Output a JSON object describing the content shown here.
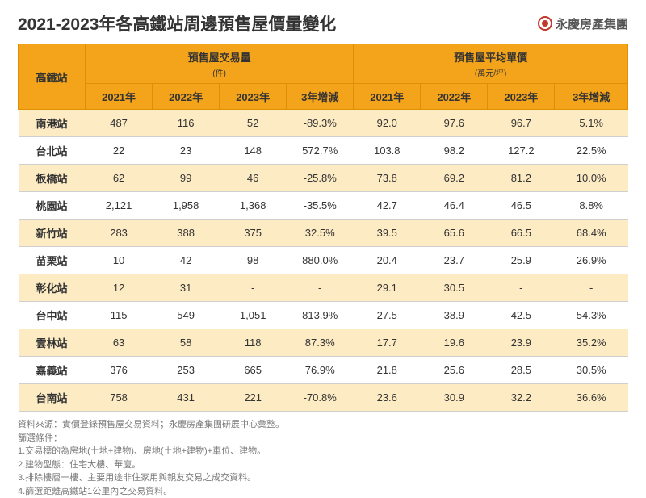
{
  "title": "2021-2023年各高鐵站周邊預售屋價量變化",
  "brand": "永慶房產集團",
  "table": {
    "station_header": "高鐵站",
    "group_volume": {
      "label": "預售屋交易量",
      "unit": "(件)"
    },
    "group_price": {
      "label": "預售屋平均單價",
      "unit": "(萬元/坪)"
    },
    "year_2021": "2021年",
    "year_2022": "2022年",
    "year_2023": "2023年",
    "change_3yr": "3年增減",
    "rows": [
      {
        "station": "南港站",
        "v2021": "487",
        "v2022": "116",
        "v2023": "52",
        "vchg": "-89.3%",
        "p2021": "92.0",
        "p2022": "97.6",
        "p2023": "96.7",
        "pchg": "5.1%"
      },
      {
        "station": "台北站",
        "v2021": "22",
        "v2022": "23",
        "v2023": "148",
        "vchg": "572.7%",
        "p2021": "103.8",
        "p2022": "98.2",
        "p2023": "127.2",
        "pchg": "22.5%"
      },
      {
        "station": "板橋站",
        "v2021": "62",
        "v2022": "99",
        "v2023": "46",
        "vchg": "-25.8%",
        "p2021": "73.8",
        "p2022": "69.2",
        "p2023": "81.2",
        "pchg": "10.0%"
      },
      {
        "station": "桃園站",
        "v2021": "2,121",
        "v2022": "1,958",
        "v2023": "1,368",
        "vchg": "-35.5%",
        "p2021": "42.7",
        "p2022": "46.4",
        "p2023": "46.5",
        "pchg": "8.8%"
      },
      {
        "station": "新竹站",
        "v2021": "283",
        "v2022": "388",
        "v2023": "375",
        "vchg": "32.5%",
        "p2021": "39.5",
        "p2022": "65.6",
        "p2023": "66.5",
        "pchg": "68.4%"
      },
      {
        "station": "苗栗站",
        "v2021": "10",
        "v2022": "42",
        "v2023": "98",
        "vchg": "880.0%",
        "p2021": "20.4",
        "p2022": "23.7",
        "p2023": "25.9",
        "pchg": "26.9%"
      },
      {
        "station": "彰化站",
        "v2021": "12",
        "v2022": "31",
        "v2023": "-",
        "vchg": "-",
        "p2021": "29.1",
        "p2022": "30.5",
        "p2023": "-",
        "pchg": "-"
      },
      {
        "station": "台中站",
        "v2021": "115",
        "v2022": "549",
        "v2023": "1,051",
        "vchg": "813.9%",
        "p2021": "27.5",
        "p2022": "38.9",
        "p2023": "42.5",
        "pchg": "54.3%"
      },
      {
        "station": "雲林站",
        "v2021": "63",
        "v2022": "58",
        "v2023": "118",
        "vchg": "87.3%",
        "p2021": "17.7",
        "p2022": "19.6",
        "p2023": "23.9",
        "pchg": "35.2%"
      },
      {
        "station": "嘉義站",
        "v2021": "376",
        "v2022": "253",
        "v2023": "665",
        "vchg": "76.9%",
        "p2021": "21.8",
        "p2022": "25.6",
        "p2023": "28.5",
        "pchg": "30.5%"
      },
      {
        "station": "台南站",
        "v2021": "758",
        "v2022": "431",
        "v2023": "221",
        "vchg": "-70.8%",
        "p2021": "23.6",
        "p2022": "30.9",
        "p2023": "32.2",
        "pchg": "36.6%"
      }
    ]
  },
  "notes": {
    "source": "資料來源：實價登錄預售屋交易資料；永慶房產集團研展中心彙整。",
    "filter_title": "篩選條件：",
    "f1": "1.交易標的為房地(土地+建物)、房地(土地+建物)+車位、建物。",
    "f2": "2.建物型態：住宅大樓、華廈。",
    "f3": "3.排除樓層一樓、主要用途非住家用與親友交易之成交資料。",
    "f4": "4.篩選距離高鐵站1公里內之交易資料。"
  },
  "colors": {
    "header_bg": "#f4a41a",
    "row_alt_bg": "#fdebc4",
    "text": "#333333",
    "note_text": "#7a7a7a",
    "brand_accent": "#c0392b"
  }
}
